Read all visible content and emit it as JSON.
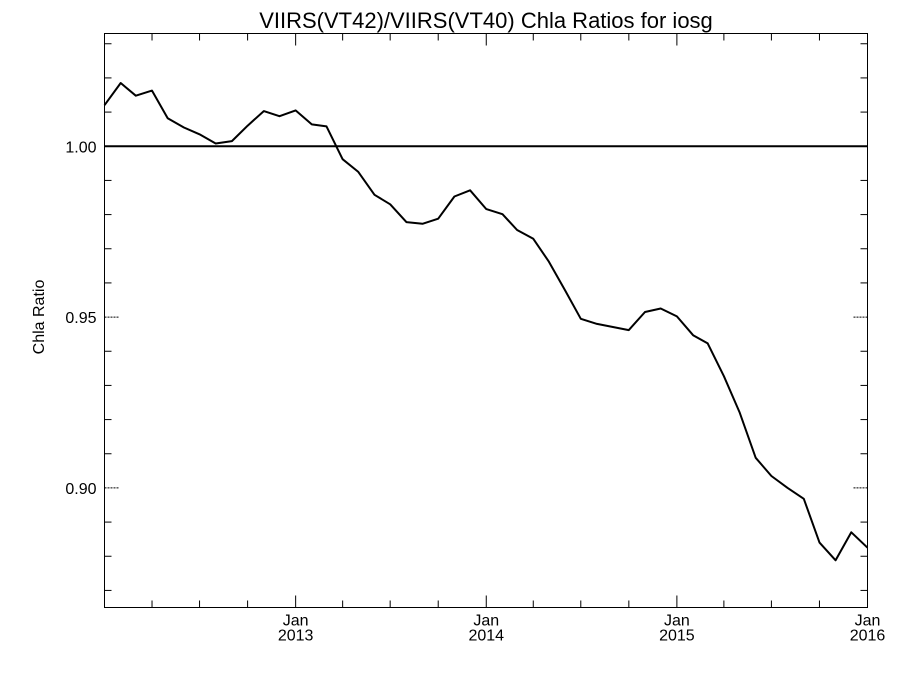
{
  "chart_data": {
    "type": "line",
    "title": "VIIRS(VT42)/VIIRS(VT40)  Chla Ratios for iosg",
    "xlabel": "",
    "ylabel": "Chla Ratio",
    "xlim": [
      "2012-01-01",
      "2016-01-01"
    ],
    "ylim": [
      0.865,
      1.033
    ],
    "grid": false,
    "x_ticks": [
      {
        "date": "2013-01-01",
        "month": "Jan",
        "year": "2013"
      },
      {
        "date": "2014-01-01",
        "month": "Jan",
        "year": "2014"
      },
      {
        "date": "2015-01-01",
        "month": "Jan",
        "year": "2015"
      },
      {
        "date": "2016-01-01",
        "month": "Jan",
        "year": "2016"
      }
    ],
    "y_ticks": [
      {
        "value": 0.9,
        "label": "0.90"
      },
      {
        "value": 0.95,
        "label": "0.95"
      },
      {
        "value": 1.0,
        "label": "1.00"
      }
    ],
    "reference_line": 1.0,
    "series": [
      {
        "x": [
          "2012-01-01",
          "2012-02-01",
          "2012-03-01",
          "2012-04-01",
          "2012-05-01",
          "2012-06-01",
          "2012-07-01",
          "2012-08-01",
          "2012-09-01",
          "2012-10-01",
          "2012-11-01",
          "2012-12-01",
          "2013-01-01",
          "2013-02-01",
          "2013-03-01",
          "2013-04-01",
          "2013-05-01",
          "2013-06-01",
          "2013-07-01",
          "2013-08-01",
          "2013-09-01",
          "2013-10-01",
          "2013-11-01",
          "2013-12-01",
          "2014-01-01",
          "2014-02-01",
          "2014-03-01",
          "2014-04-01",
          "2014-05-01",
          "2014-06-01",
          "2014-07-01",
          "2014-08-01",
          "2014-10-01",
          "2014-11-01",
          "2014-12-01",
          "2015-01-01",
          "2015-02-01",
          "2015-03-01",
          "2015-04-01",
          "2015-05-01",
          "2015-06-01",
          "2015-07-01",
          "2015-08-01",
          "2015-09-01",
          "2015-10-01",
          "2015-11-01",
          "2015-12-01",
          "2016-01-01"
        ],
        "y": [
          1.012,
          1.0185,
          1.0148,
          1.0163,
          1.0082,
          1.0055,
          1.0035,
          1.0008,
          1.0015,
          1.006,
          1.0103,
          1.0088,
          1.0105,
          1.0064,
          1.0058,
          0.9962,
          0.9925,
          0.9858,
          0.983,
          0.9778,
          0.9773,
          0.9788,
          0.9853,
          0.9871,
          0.9816,
          0.9801,
          0.9755,
          0.9729,
          0.9662,
          0.9578,
          0.9495,
          0.948,
          0.9462,
          0.9515,
          0.9525,
          0.9502,
          0.9447,
          0.9423,
          0.9327,
          0.9222,
          0.9088,
          0.9035,
          0.9,
          0.8968,
          0.884,
          0.8788,
          0.887,
          0.8825
        ]
      }
    ]
  }
}
